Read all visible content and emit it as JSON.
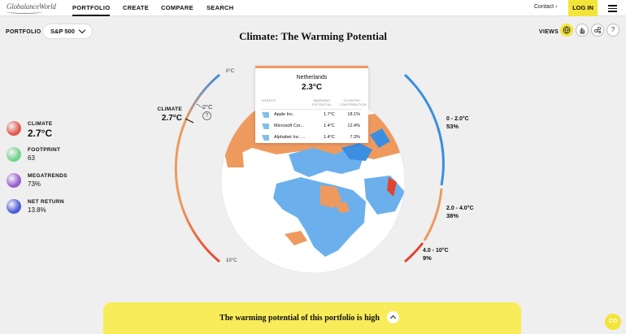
{
  "brand": {
    "logo_text": "GlobalanceWorld"
  },
  "nav": {
    "items": [
      "PORTFOLIO",
      "CREATE",
      "COMPARE",
      "SEARCH"
    ],
    "contact": "Contact ›",
    "login": "LOG IN"
  },
  "portfolio": {
    "label": "PORTFOLIO",
    "selected": "S&P 500"
  },
  "page_title": "Climate: The Warming Potential",
  "views": {
    "label": "VIEWS",
    "buttons": [
      "globe-icon",
      "hand-icon",
      "molecule-icon",
      "help-icon"
    ],
    "help_glyph": "?"
  },
  "metrics": [
    {
      "label": "CLIMATE",
      "value": "2.7°C",
      "color": "#e2574c"
    },
    {
      "label": "FOOTPRINT",
      "value": "63",
      "color": "#6fd38a"
    },
    {
      "label": "MEGATRENDS",
      "value": "73%",
      "color": "#9a5dd0"
    },
    {
      "label": "NET RETURN",
      "value": "13.8%",
      "color": "#4a5ad9"
    }
  ],
  "globe": {
    "climate_label": "CLIMATE",
    "climate_value": "2.7°C",
    "target_value": "2°C",
    "target_help": "?",
    "scale_top": "0°C",
    "scale_bottom": "10°C"
  },
  "bands": [
    {
      "range": "0 - 2.0°C",
      "share": "53%",
      "color": "#3c8ee0"
    },
    {
      "range": "2.0 - 4.0°C",
      "share": "38%",
      "color": "#ee9a5e"
    },
    {
      "range": "4.0 - 10°C",
      "share": "9%",
      "color": "#e0442f"
    }
  ],
  "tooltip": {
    "country": "Netherlands",
    "temperature": "2.3°C",
    "col_assets": "ASSETS",
    "col_warming": "WARMING POTENTIAL",
    "col_contrib": "COUNTRY CONTRIBUTION",
    "rows": [
      {
        "name": "Apple Inc.",
        "warming": "1.7°C",
        "contribution": "18.1%"
      },
      {
        "name": "Microsoft Cor...",
        "warming": "1.4°C",
        "contribution": "12.4%"
      },
      {
        "name": "Alphabet Inc. ...",
        "warming": "1.4°C",
        "contribution": "7.3%"
      }
    ]
  },
  "banner": {
    "text": "The warming potential of this portfolio is high"
  },
  "corner_badge": "CO"
}
